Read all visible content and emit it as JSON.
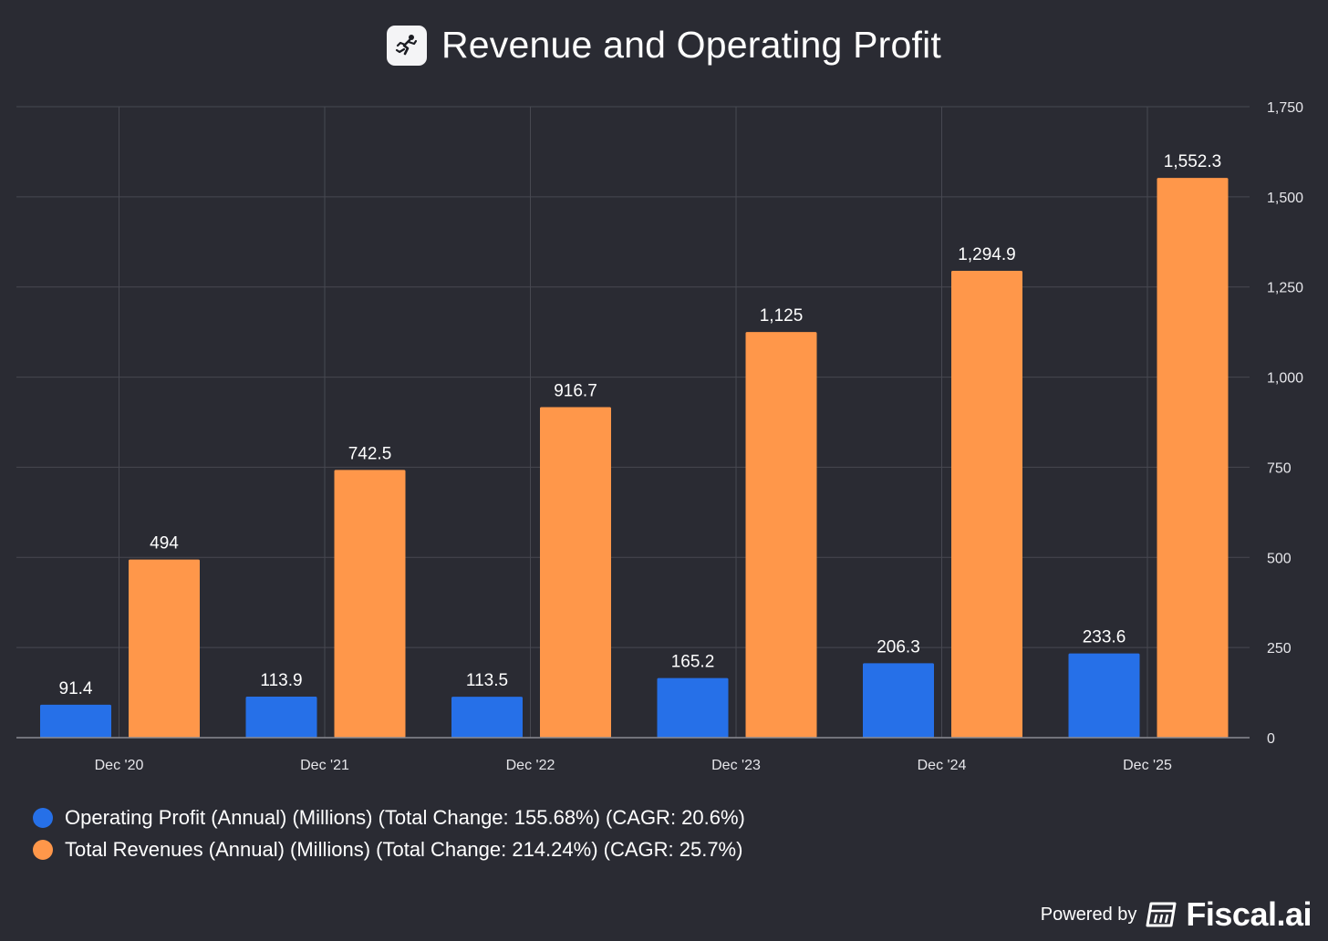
{
  "title": "Revenue and Operating Profit",
  "logo_icon": "runner-icon",
  "chart_data": {
    "type": "bar",
    "categories": [
      "Dec '20",
      "Dec '21",
      "Dec '22",
      "Dec '23",
      "Dec '24",
      "Dec '25"
    ],
    "series": [
      {
        "name": "Operating Profit (Annual) (Millions) (Total Change: 155.68%) (CAGR: 20.6%)",
        "color": "#2670e8",
        "values": [
          91.4,
          113.9,
          113.5,
          165.2,
          206.3,
          233.6
        ],
        "labels": [
          "91.4",
          "113.9",
          "113.5",
          "165.2",
          "206.3",
          "233.6"
        ]
      },
      {
        "name": "Total Revenues (Annual) (Millions) (Total Change: 214.24%) (CAGR: 25.7%)",
        "color": "#ff974a",
        "values": [
          494,
          742.5,
          916.7,
          1125,
          1294.9,
          1552.3
        ],
        "labels": [
          "494",
          "742.5",
          "916.7",
          "1,125",
          "1,294.9",
          "1,552.3"
        ]
      }
    ],
    "ylim": [
      0,
      1750
    ],
    "yticks": [
      0,
      250,
      500,
      750,
      1000,
      1250,
      1500,
      1750
    ],
    "ytick_labels": [
      "0",
      "250",
      "500",
      "750",
      "1,000",
      "1,250",
      "1,500",
      "1,750"
    ],
    "y_axis_side": "right",
    "grid": true,
    "legend_position": "bottom-left",
    "xlabel": "",
    "ylabel": ""
  },
  "footer": {
    "powered_label": "Powered by",
    "brand": "Fiscal.ai",
    "brand_icon": "fiscal-logo-icon"
  }
}
